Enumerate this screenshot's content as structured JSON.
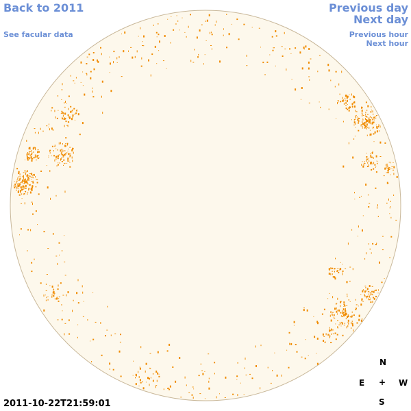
{
  "nav": {
    "back_label": "Back to 2011",
    "facular_label": "See facular data",
    "prev_day_label": "Previous day",
    "next_day_label": "Next day",
    "prev_hour_label": "Previous hour",
    "next_hour_label": "Next hour"
  },
  "timestamp": "2011-10-22T21:59:01",
  "compass": {
    "north": "N",
    "south": "S",
    "east": "E",
    "west": "W",
    "center": "+"
  },
  "colors": {
    "disk_fill": "#fdf8ec",
    "disk_border": "#c9b89a",
    "spot": "#f08c00",
    "link": "#6b8fd6"
  }
}
